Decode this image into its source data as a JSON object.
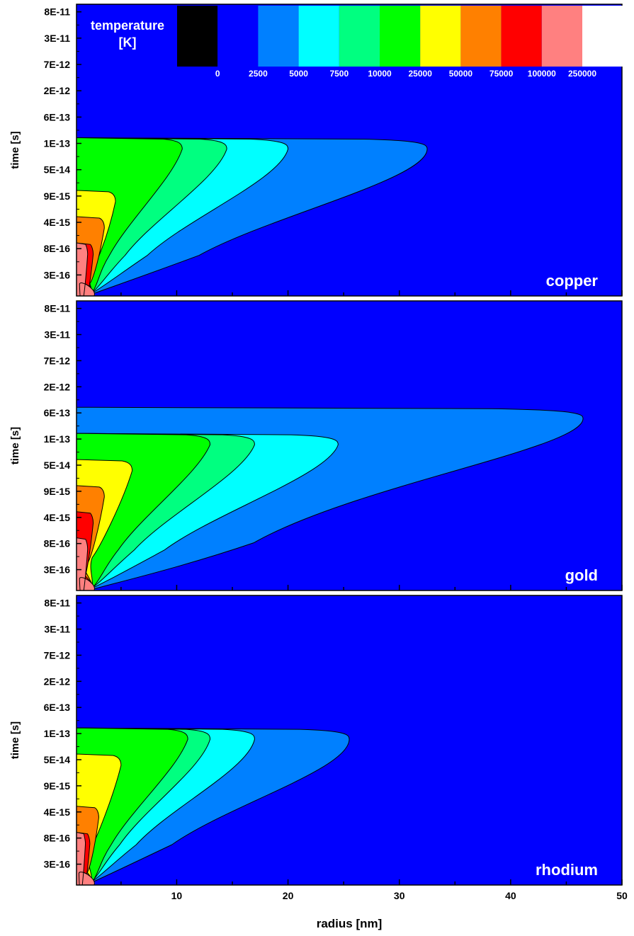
{
  "chart_data": {
    "type": "heatmap",
    "xlabel": "radius [nm]",
    "ylabel": "time [s]",
    "xlim": [
      1,
      50
    ],
    "x_ticks": [
      10,
      20,
      30,
      40,
      50
    ],
    "y_tick_labels": [
      "8E-11",
      "3E-11",
      "7E-12",
      "2E-12",
      "6E-13",
      "1E-13",
      "5E-14",
      "9E-15",
      "4E-15",
      "8E-16",
      "3E-16"
    ],
    "legend": {
      "title_line1": "temperature",
      "title_line2": "[K]",
      "levels": [
        "0",
        "2500",
        "5000",
        "7500",
        "10000",
        "25000",
        "50000",
        "75000",
        "100000",
        "250000"
      ],
      "colors": [
        "#000000",
        "#0000ff",
        "#0080ff",
        "#00ffff",
        "#00ff80",
        "#00ff00",
        "#ffff00",
        "#ff8000",
        "#ff0000",
        "#ff8080",
        "#ffffff"
      ]
    },
    "panels": [
      {
        "name": "copper",
        "extent_radius_nm": [
          32.5,
          20,
          14.5,
          10.5,
          4.5,
          3.5,
          2.5,
          2.0
        ],
        "contour_top_time_label": [
          "1E-13",
          "1E-13",
          "1E-13",
          "1E-13",
          "9E-15",
          "4E-15",
          "8E-16",
          "8E-16"
        ]
      },
      {
        "name": "gold",
        "extent_radius_nm": [
          46.5,
          24.5,
          17,
          13,
          6,
          3.5,
          2.5,
          2.0
        ],
        "contour_top_time_label": [
          "6E-13",
          "1E-13",
          "1E-13",
          "1E-13",
          "5E-14",
          "9E-15",
          "4E-15",
          "8E-16"
        ]
      },
      {
        "name": "rhodium",
        "extent_radius_nm": [
          25.5,
          17,
          13,
          11,
          5,
          3,
          2.2,
          1.8
        ],
        "contour_top_time_label": [
          "1E-13",
          "1E-13",
          "1E-13",
          "1E-13",
          "5E-14",
          "4E-15",
          "8E-16",
          "8E-16"
        ]
      }
    ]
  }
}
